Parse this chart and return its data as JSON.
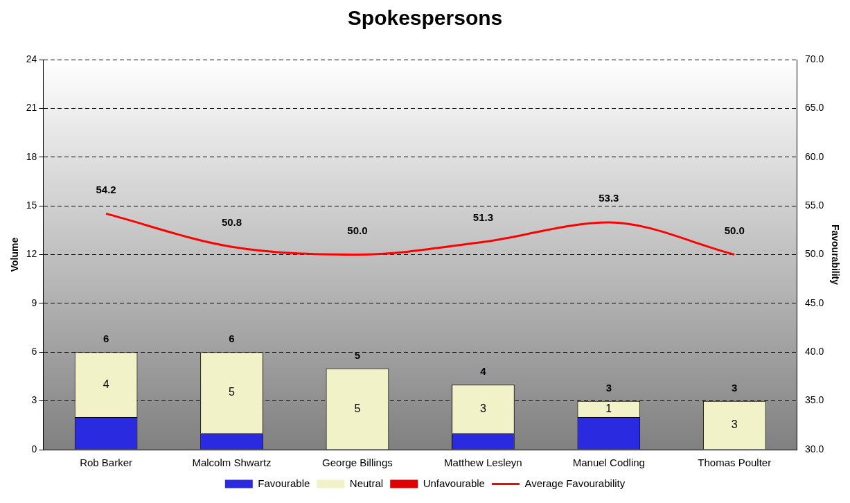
{
  "chart_data": {
    "type": "bar",
    "title": "Spokespersons",
    "ylabel": "Volume",
    "y2label": "Favourability",
    "categories": [
      "Rob Barker",
      "Malcolm Shwartz",
      "George Billings",
      "Matthew Lesleyn",
      "Manuel Codling",
      "Thomas Poulter"
    ],
    "stacked": true,
    "series": [
      {
        "name": "Favourable",
        "color": "#2a2ae0",
        "values": [
          2,
          1,
          0,
          1,
          2,
          0
        ]
      },
      {
        "name": "Neutral",
        "color": "#f2f2c8",
        "values": [
          4,
          5,
          5,
          3,
          1,
          3
        ],
        "value_labels": [
          "4",
          "5",
          "5",
          "3",
          "1",
          "3"
        ]
      },
      {
        "name": "Unfavourable",
        "color": "#e00000",
        "values": [
          0,
          0,
          0,
          0,
          0,
          0
        ]
      },
      {
        "name": "Average Favourability",
        "type": "line",
        "axis": "y2",
        "color": "#ff0000",
        "values": [
          54.2,
          50.8,
          50.0,
          51.3,
          53.3,
          50.0
        ],
        "value_labels": [
          "54.2",
          "50.8",
          "50.0",
          "51.3",
          "53.3",
          "50.0"
        ]
      }
    ],
    "totals": [
      "6",
      "6",
      "5",
      "4",
      "3",
      "3"
    ],
    "ylim": [
      0,
      24
    ],
    "yticks": [
      0,
      3,
      6,
      9,
      12,
      15,
      18,
      21,
      24
    ],
    "y2lim": [
      30,
      70
    ],
    "y2ticks": [
      {
        "value": 30,
        "label": "30.0"
      },
      {
        "value": 35,
        "label": "35.0"
      },
      {
        "value": 40,
        "label": "40.0"
      },
      {
        "value": 45,
        "label": "45.0"
      },
      {
        "value": 50,
        "label": "50.0"
      },
      {
        "value": 55,
        "label": "55.0"
      },
      {
        "value": 60,
        "label": "60.0"
      },
      {
        "value": 65,
        "label": "65.0"
      },
      {
        "value": 70,
        "label": "70.0"
      }
    ],
    "grid": "y",
    "legend": "bottom",
    "marker": "none",
    "line_style": "solid"
  }
}
